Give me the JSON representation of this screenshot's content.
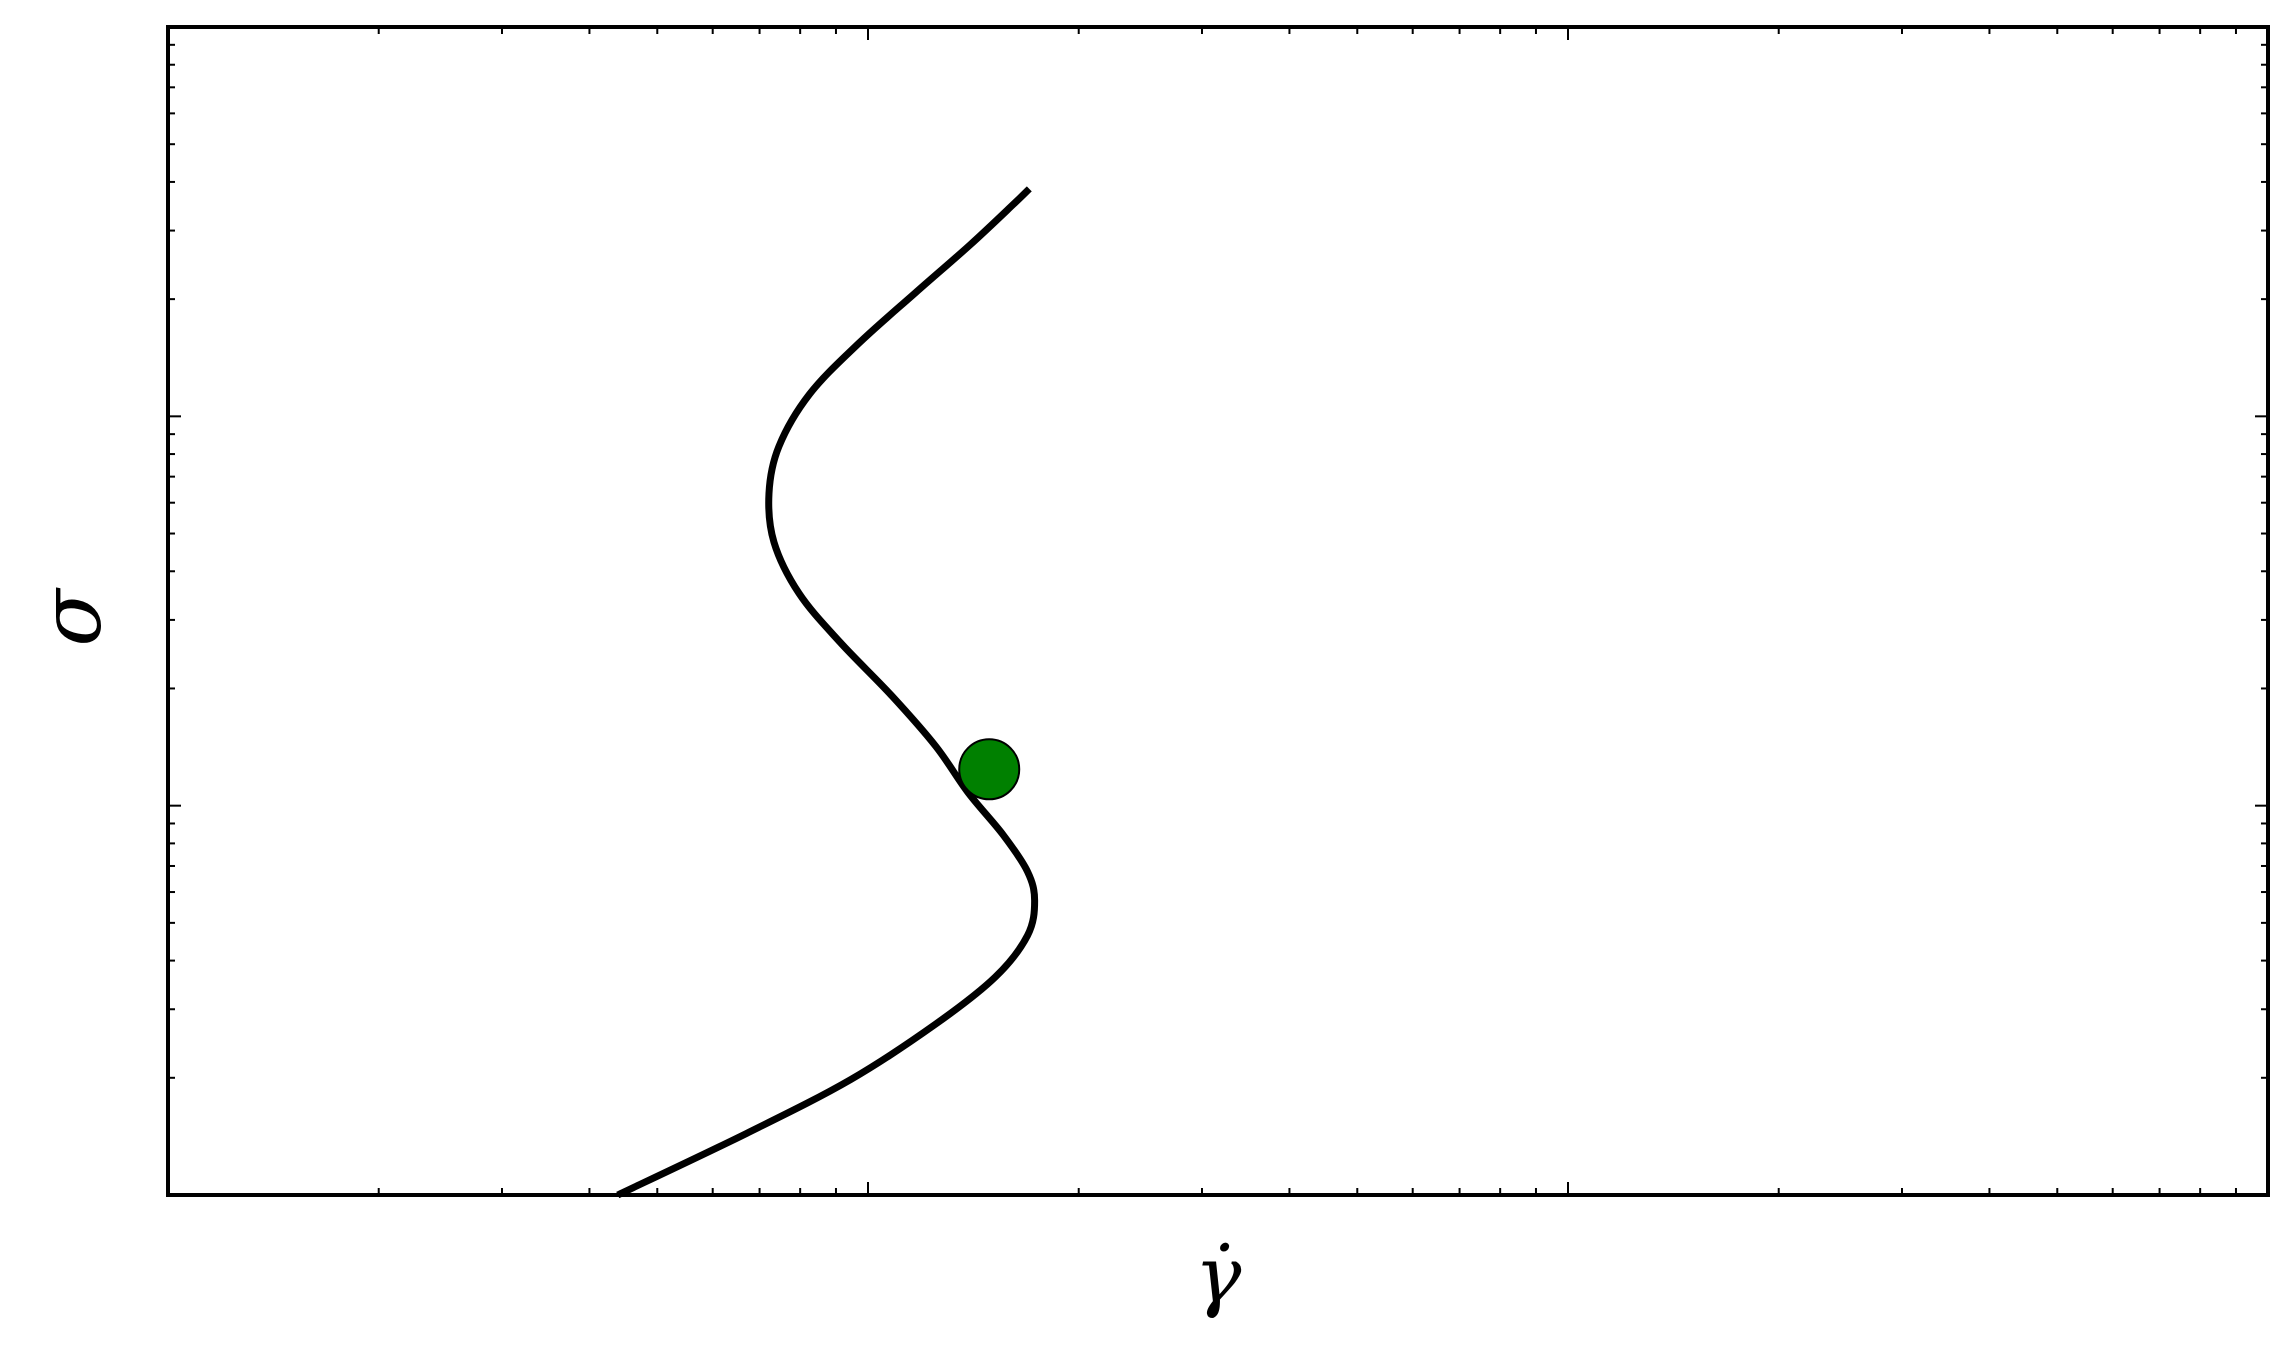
{
  "chart_data": {
    "type": "line",
    "title": "",
    "xlabel": "γ̇",
    "ylabel": "σ",
    "xscale": "log",
    "yscale": "log",
    "xlim": [
      1,
      1000
    ],
    "ylim": [
      1,
      1000
    ],
    "grid": false,
    "legend": "none",
    "series": [
      {
        "color": "#000000",
        "points": [
          [
            4.39,
            1.0
          ],
          [
            6.71,
            1.44
          ],
          [
            9.45,
            1.98
          ],
          [
            12.5,
            2.75
          ],
          [
            15.2,
            3.63
          ],
          [
            16.9,
            4.64
          ],
          [
            17.3,
            5.7
          ],
          [
            16.9,
            6.77
          ],
          [
            15.6,
            8.41
          ],
          [
            13.9,
            10.8
          ],
          [
            12.5,
            14.2
          ],
          [
            10.8,
            19.2
          ],
          [
            9.12,
            26.3
          ],
          [
            7.97,
            35.1
          ],
          [
            7.34,
            47.5
          ],
          [
            7.22,
            63.4
          ],
          [
            7.46,
            83.7
          ],
          [
            8.25,
            114
          ],
          [
            9.7,
            154
          ],
          [
            11.7,
            208
          ],
          [
            14.0,
            276
          ],
          [
            16.2,
            353
          ],
          [
            17.0,
            384
          ]
        ]
      }
    ],
    "markers": [
      {
        "x": 14.9,
        "y": 12.4,
        "color": "#008000"
      }
    ],
    "x_ticks": {
      "major": [
        10,
        100
      ],
      "minor": [
        2,
        3,
        4,
        5,
        6,
        7,
        8,
        9,
        20,
        30,
        40,
        50,
        60,
        70,
        80,
        90,
        200,
        300,
        400,
        500,
        600,
        700,
        800,
        900
      ]
    },
    "y_ticks": {
      "major": [
        10,
        100
      ],
      "minor": [
        2,
        3,
        4,
        5,
        6,
        7,
        8,
        9,
        20,
        30,
        40,
        50,
        60,
        70,
        80,
        90,
        200,
        300,
        400,
        500,
        600,
        700,
        800,
        900
      ]
    }
  }
}
